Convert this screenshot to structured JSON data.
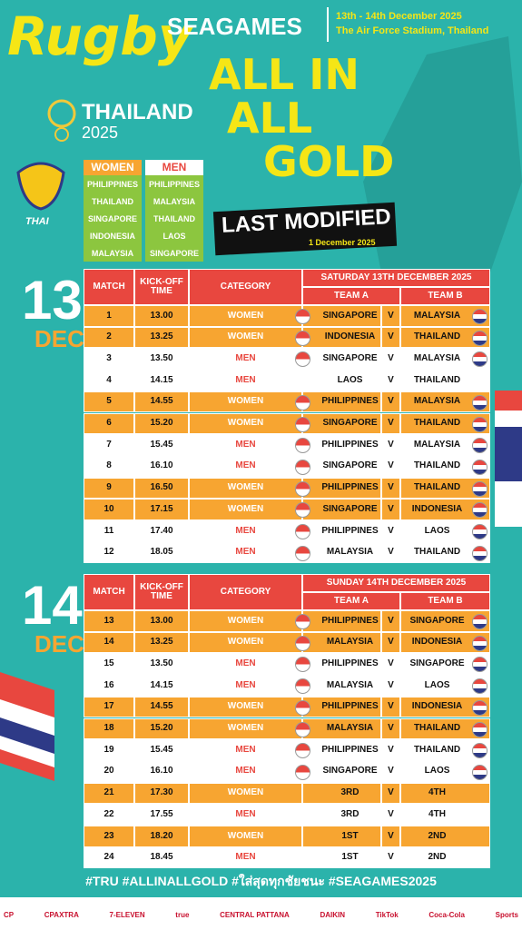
{
  "header": {
    "title": "Rugby",
    "event": "SEAGAMES",
    "dates": "13th - 14th December 2025",
    "venue": "The Air Force Stadium, Thailand",
    "host": "THAILAND",
    "year": "2025",
    "slogan": [
      "ALL IN",
      "ALL",
      "GOLD"
    ],
    "updated_label": "LAST MODIFIED",
    "updated_date": "1 December 2025",
    "team_logo": "THAI"
  },
  "teams": {
    "women": {
      "title": "WOMEN",
      "list": [
        "PHILIPPINES",
        "THAILAND",
        "SINGAPORE",
        "INDONESIA",
        "MALAYSIA"
      ]
    },
    "men": {
      "title": "MEN",
      "list": [
        "PHILIPPINES",
        "MALAYSIA",
        "THAILAND",
        "LAOS",
        "SINGAPORE"
      ]
    }
  },
  "days": [
    {
      "day": "13",
      "month": "DEC",
      "date_label": "SATURDAY 13TH DECEMBER 2025",
      "columns": [
        "MATCH",
        "KICK-OFF TIME",
        "CATEGORY",
        "TEAM A",
        "TEAM B"
      ],
      "rows": [
        [
          "1",
          "13.00",
          "WOMEN",
          "SINGAPORE",
          "V",
          "MALAYSIA"
        ],
        [
          "2",
          "13.25",
          "WOMEN",
          "INDONESIA",
          "V",
          "THAILAND"
        ],
        [
          "3",
          "13.50",
          "MEN",
          "SINGAPORE",
          "V",
          "MALAYSIA"
        ],
        [
          "4",
          "14.15",
          "MEN",
          "LAOS",
          "V",
          "THAILAND"
        ],
        [
          "5",
          "14.55",
          "WOMEN",
          "PHILIPPINES",
          "V",
          "MALAYSIA"
        ],
        [
          "6",
          "15.20",
          "WOMEN",
          "SINGAPORE",
          "V",
          "THAILAND"
        ],
        [
          "7",
          "15.45",
          "MEN",
          "PHILIPPINES",
          "V",
          "MALAYSIA"
        ],
        [
          "8",
          "16.10",
          "MEN",
          "SINGAPORE",
          "V",
          "THAILAND"
        ],
        [
          "9",
          "16.50",
          "WOMEN",
          "PHILIPPINES",
          "V",
          "THAILAND"
        ],
        [
          "10",
          "17.15",
          "WOMEN",
          "SINGAPORE",
          "V",
          "INDONESIA"
        ],
        [
          "11",
          "17.40",
          "MEN",
          "PHILIPPINES",
          "V",
          "LAOS"
        ],
        [
          "12",
          "18.05",
          "MEN",
          "MALAYSIA",
          "V",
          "THAILAND"
        ]
      ]
    },
    {
      "day": "14",
      "month": "DEC",
      "date_label": "SUNDAY 14TH DECEMBER 2025",
      "columns": [
        "MATCH",
        "KICK-OFF TIME",
        "CATEGORY",
        "TEAM A",
        "TEAM B"
      ],
      "rows": [
        [
          "13",
          "13.00",
          "WOMEN",
          "PHILIPPINES",
          "V",
          "SINGAPORE"
        ],
        [
          "14",
          "13.25",
          "WOMEN",
          "MALAYSIA",
          "V",
          "INDONESIA"
        ],
        [
          "15",
          "13.50",
          "MEN",
          "PHILIPPINES",
          "V",
          "SINGAPORE"
        ],
        [
          "16",
          "14.15",
          "MEN",
          "MALAYSIA",
          "V",
          "LAOS"
        ],
        [
          "17",
          "14.55",
          "WOMEN",
          "PHILIPPINES",
          "V",
          "INDONESIA"
        ],
        [
          "18",
          "15.20",
          "WOMEN",
          "MALAYSIA",
          "V",
          "THAILAND"
        ],
        [
          "19",
          "15.45",
          "MEN",
          "PHILIPPINES",
          "V",
          "THAILAND"
        ],
        [
          "20",
          "16.10",
          "MEN",
          "SINGAPORE",
          "V",
          "LAOS"
        ],
        [
          "21",
          "17.30",
          "WOMEN",
          "3RD",
          "V",
          "4TH"
        ],
        [
          "22",
          "17.55",
          "MEN",
          "3RD",
          "V",
          "4TH"
        ],
        [
          "23",
          "18.20",
          "WOMEN",
          "1ST",
          "V",
          "2ND"
        ],
        [
          "24",
          "18.45",
          "MEN",
          "1ST",
          "V",
          "2ND"
        ]
      ]
    }
  ],
  "footer": {
    "hashtags": "#TRU #ALLINALLGOLD #ใส่สุดทุกชัยชนะ #SEAGAMES2025",
    "sponsors": [
      "CP",
      "CPAXTRA",
      "7-ELEVEN",
      "true",
      "CENTRAL PATTANA",
      "DAIKIN",
      "TikTok",
      "Coca-Cola",
      "Sports"
    ]
  }
}
